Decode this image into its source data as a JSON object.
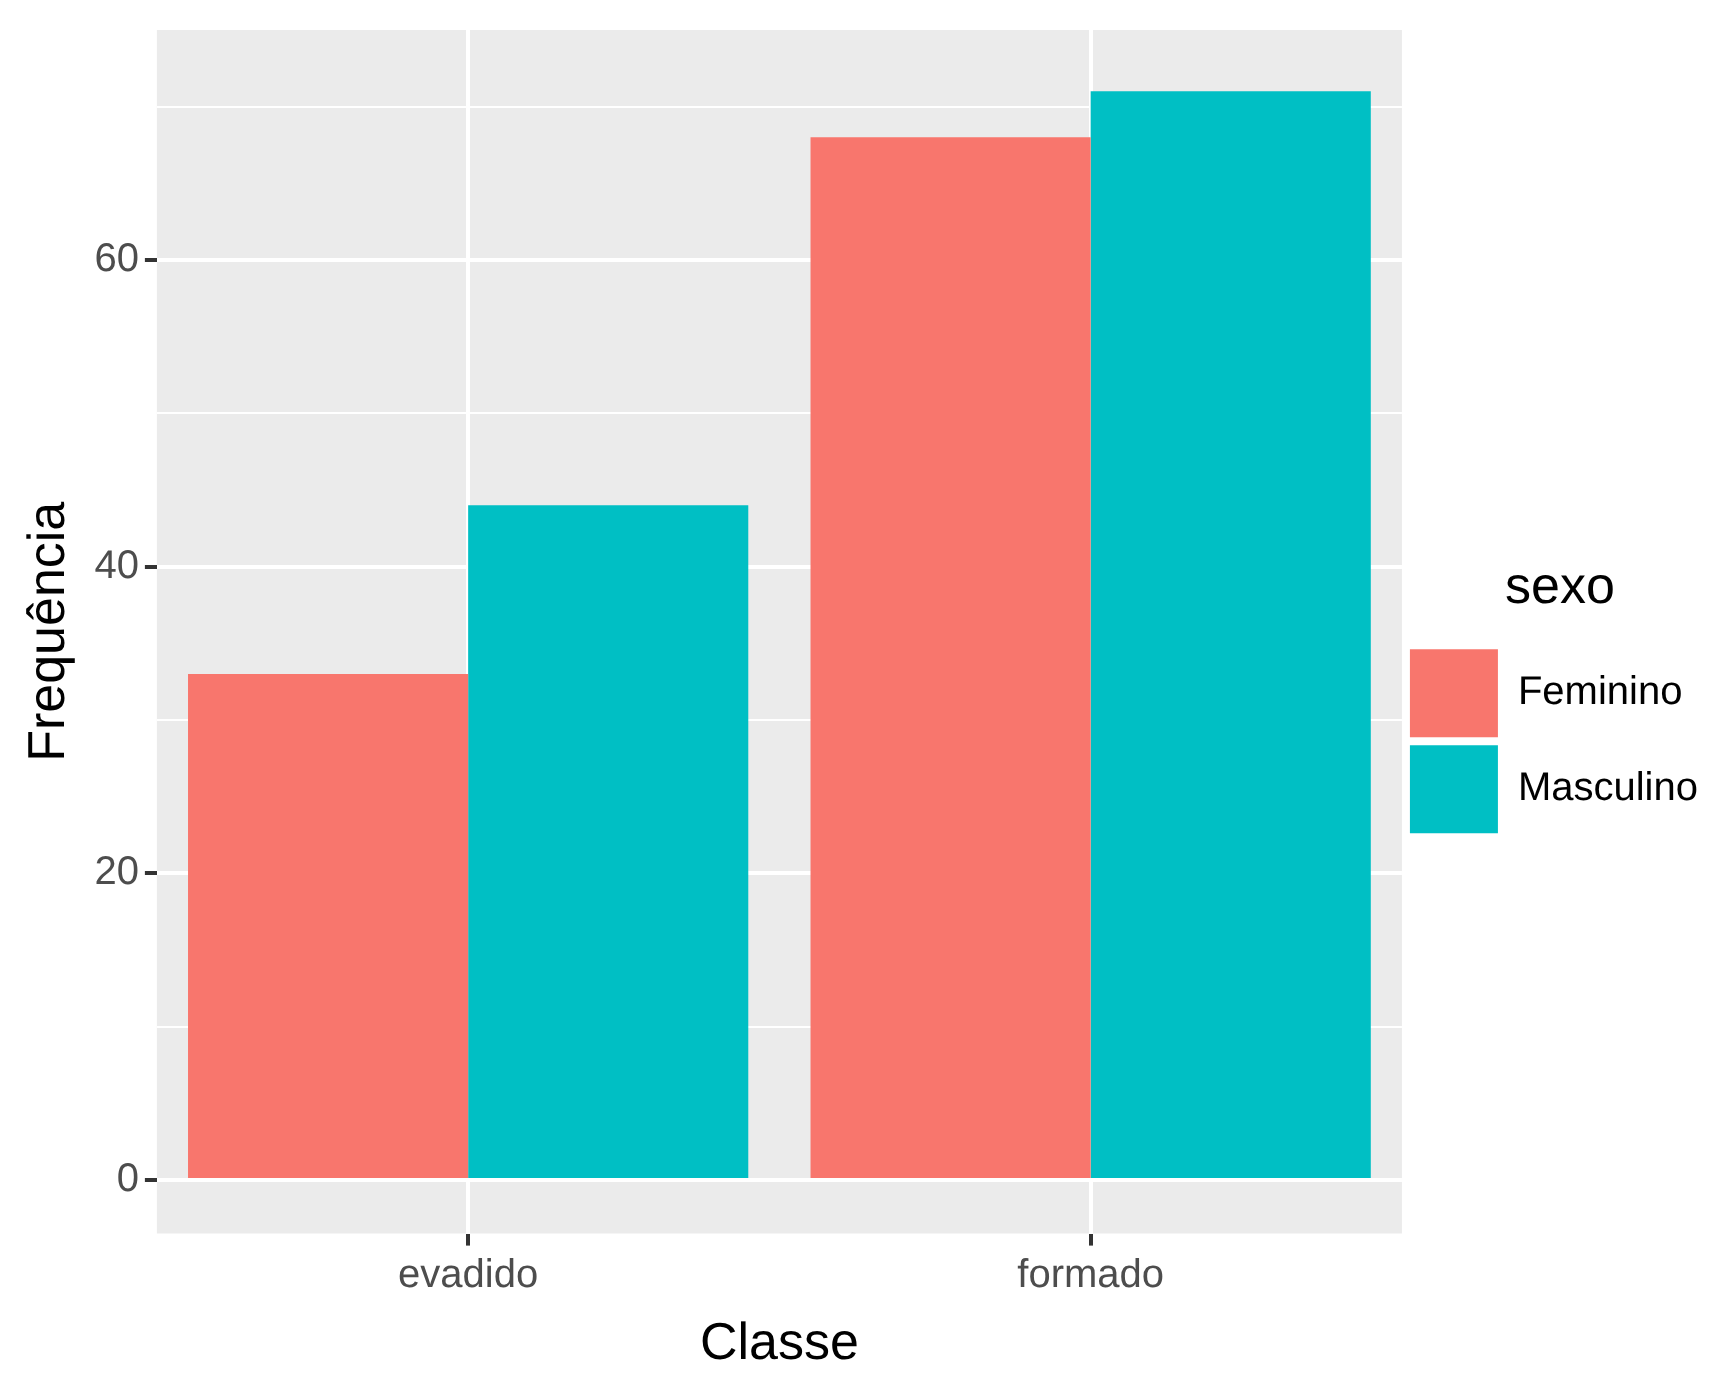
{
  "chart_data": {
    "type": "bar",
    "xlabel": "Classe",
    "ylabel": "Frequência",
    "legend_title": "sexo",
    "categories": [
      "evadido",
      "formado"
    ],
    "series": [
      {
        "name": "Feminino",
        "color": "#f8766d",
        "values": [
          33,
          68
        ]
      },
      {
        "name": "Masculino",
        "color": "#00bfc4",
        "values": [
          44,
          71
        ]
      }
    ],
    "ylim": [
      -3.5,
      75
    ],
    "yticks": [
      0,
      {
        "value": 10,
        "label": null
      },
      20,
      {
        "value": 30,
        "label": null
      },
      40,
      {
        "value": 50,
        "label": null
      },
      60,
      {
        "value": 70,
        "label": null
      }
    ],
    "grid": true,
    "legend": "right"
  }
}
